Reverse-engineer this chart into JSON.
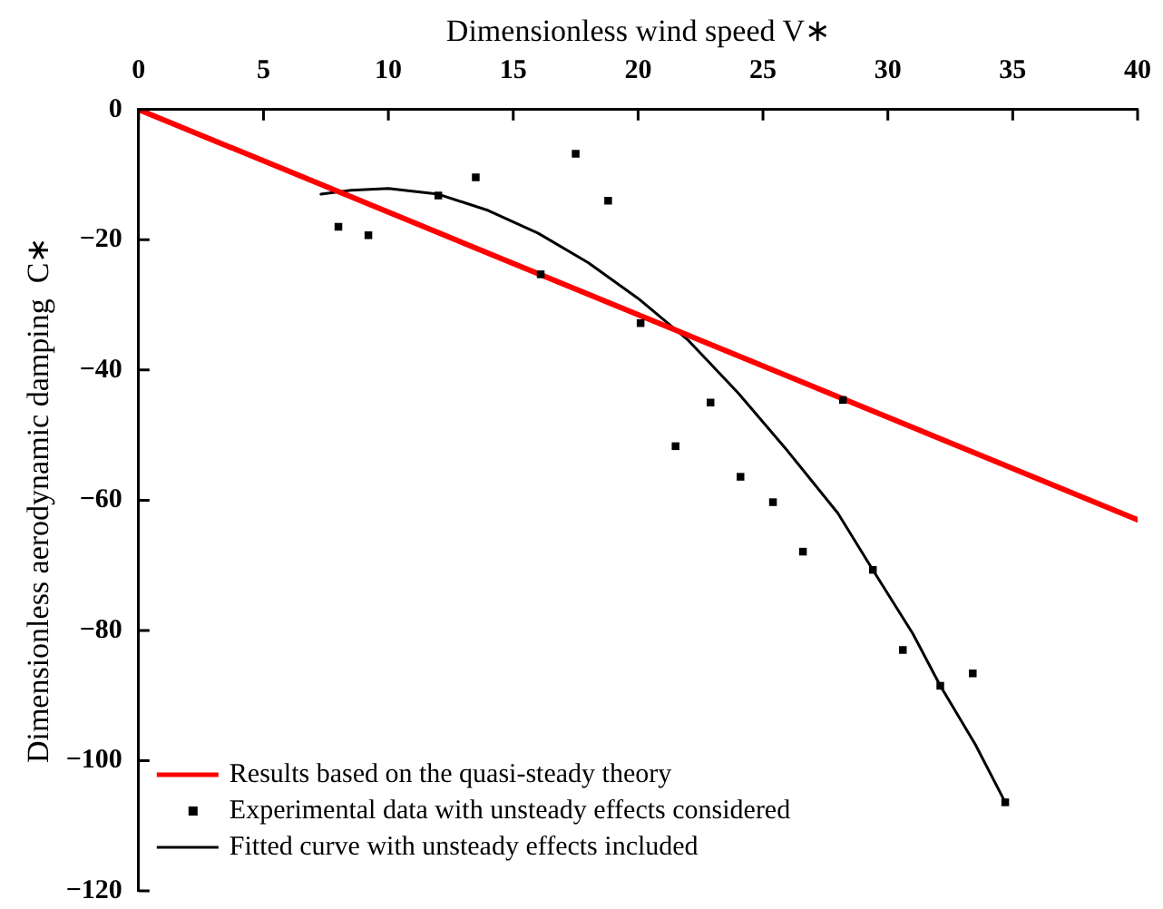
{
  "chart_data": {
    "type": "line",
    "xlabel": "Dimensionless wind speed V∗",
    "ylabel": "Dimensionless aerodynamic damping  C∗",
    "xlim": [
      0,
      40
    ],
    "xticks": [
      0,
      5,
      10,
      15,
      20,
      25,
      30,
      35,
      40
    ],
    "ylim": [
      -120,
      0
    ],
    "yticks": [
      {
        "value": -120,
        "label": "−120"
      },
      {
        "value": -100,
        "label": "−100"
      },
      {
        "value": -80,
        "label": "−80"
      },
      {
        "value": -60,
        "label": "−60"
      },
      {
        "value": -40,
        "label": "−40"
      },
      {
        "value": -20,
        "label": "−20"
      },
      0
    ],
    "grid": false,
    "legend": "bottom left",
    "series": [
      {
        "name": "Results based on the quasi-steady theory",
        "type": "line",
        "color": "#ff0000",
        "marker": "none",
        "x": [
          0,
          40
        ],
        "values": [
          0,
          -63
        ]
      },
      {
        "name": "Experimental data with unsteady effects considered",
        "type": "scatter",
        "color": "#000000",
        "marker": "square",
        "x": [
          8.0,
          9.2,
          12.0,
          13.5,
          16.1,
          17.5,
          18.8,
          20.1,
          21.5,
          22.9,
          24.1,
          25.4,
          26.6,
          28.2,
          29.4,
          30.6,
          32.1,
          33.4,
          34.7
        ],
        "values": [
          -18,
          -19.3,
          -13.2,
          -10.4,
          -25.3,
          -6.8,
          -14,
          -32.8,
          -51.7,
          -45,
          -56.4,
          -60.3,
          -67.9,
          -44.6,
          -70.7,
          -83,
          -88.5,
          -86.6,
          -106.4
        ]
      },
      {
        "name": "Fitted curve with unsteady effects included",
        "type": "line",
        "color": "#000000",
        "marker": "none",
        "x": [
          7.3,
          8.5,
          10,
          12,
          14,
          16,
          18,
          20,
          22,
          24,
          26,
          28,
          29.4,
          31,
          32.1,
          33.5,
          34.7
        ],
        "values": [
          -13,
          -12.4,
          -12.1,
          -13,
          -15.5,
          -19,
          -23.5,
          -29,
          -35.4,
          -43.5,
          -52.5,
          -62,
          -70.7,
          -80.5,
          -88.5,
          -97.5,
          -106.4
        ]
      }
    ]
  }
}
